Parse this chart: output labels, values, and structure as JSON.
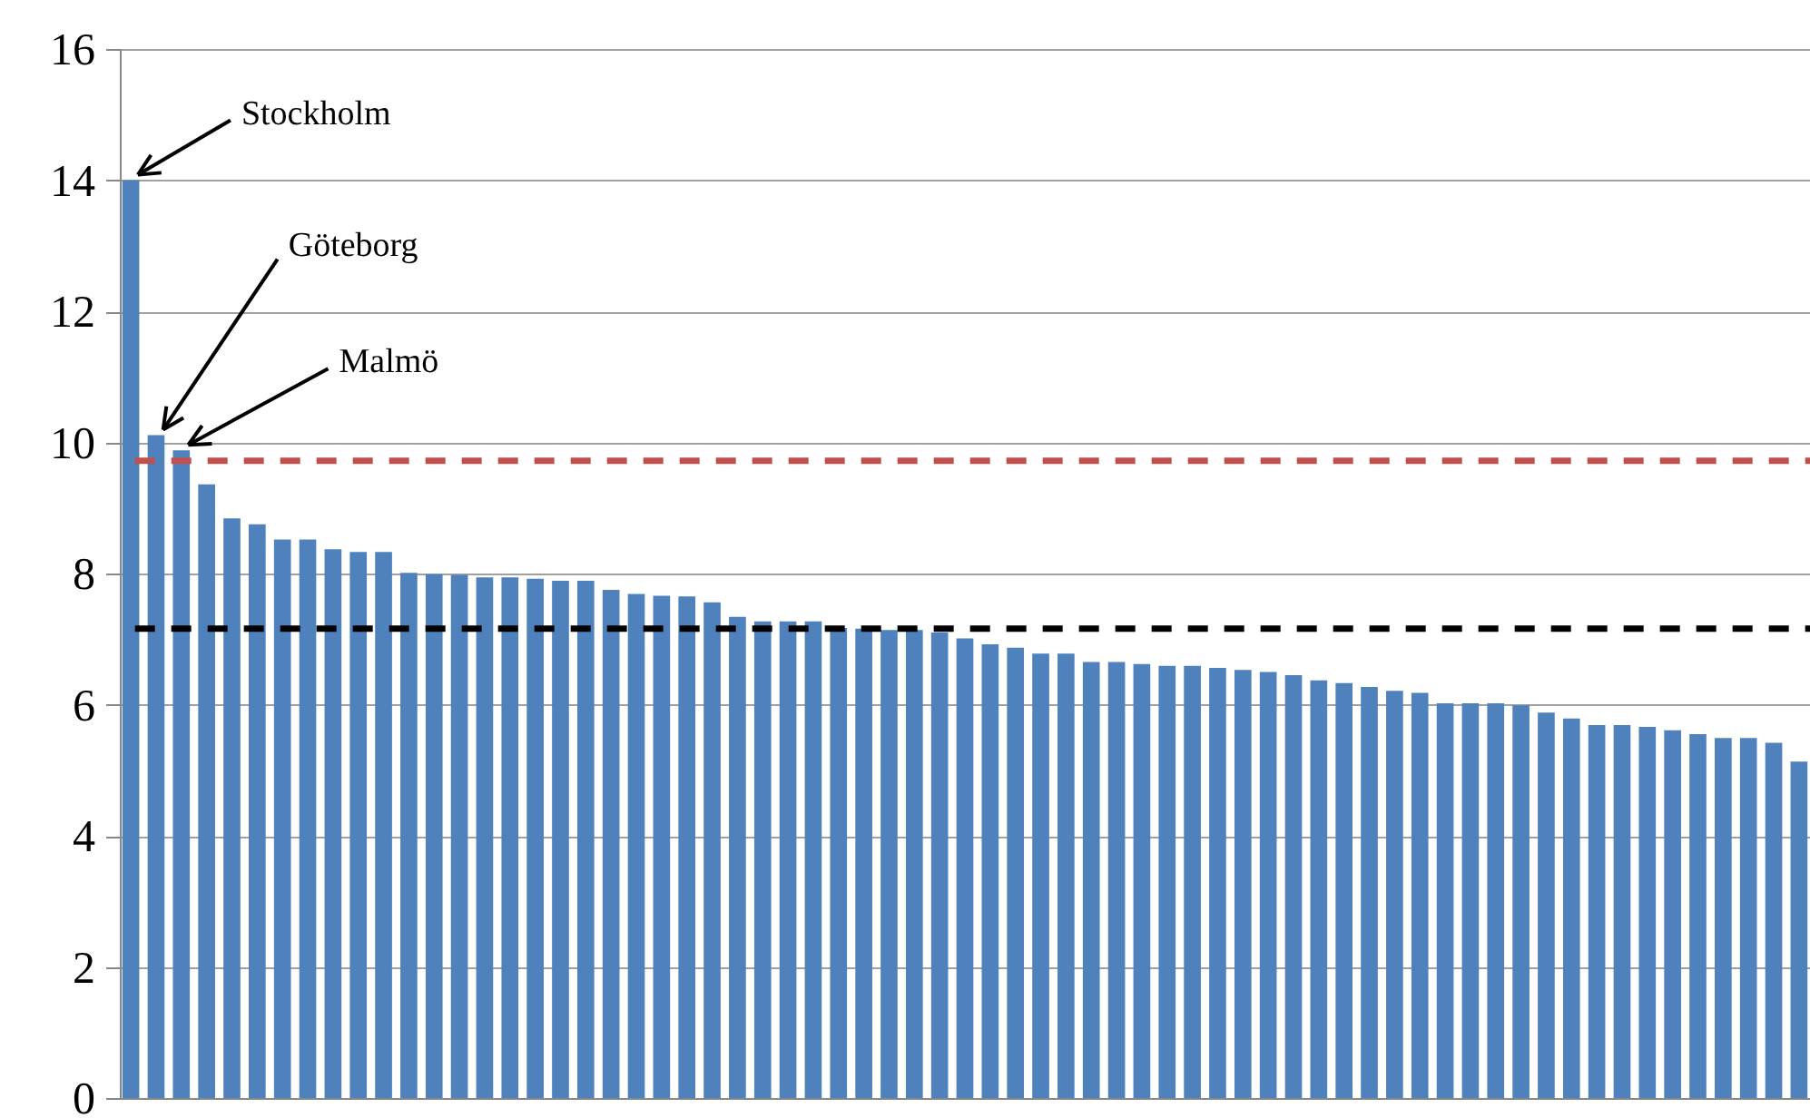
{
  "chart_data": {
    "type": "bar",
    "relative": false,
    "categories": [
      null,
      null,
      null,
      null,
      null,
      null,
      null,
      null,
      null,
      null,
      null,
      null,
      null,
      null,
      null,
      null,
      null,
      null,
      null,
      null,
      null,
      null,
      null,
      null,
      null,
      null,
      null,
      null,
      null,
      null,
      null,
      null,
      null,
      null,
      null,
      null,
      null,
      null,
      null,
      null,
      null,
      null,
      null,
      null,
      null,
      null,
      null,
      null,
      null,
      null,
      null,
      null,
      null,
      null,
      null,
      null,
      null,
      null,
      null,
      null,
      null,
      null,
      null,
      null,
      null,
      null,
      null
    ],
    "values": [
      14.0,
      10.11,
      9.88,
      9.36,
      8.84,
      8.75,
      8.52,
      8.52,
      8.37,
      8.33,
      8.33,
      8.01,
      7.99,
      7.98,
      7.94,
      7.94,
      7.92,
      7.89,
      7.89,
      7.75,
      7.69,
      7.66,
      7.65,
      7.56,
      7.34,
      7.27,
      7.27,
      7.27,
      7.17,
      7.16,
      7.14,
      7.14,
      7.1,
      7.01,
      6.92,
      6.87,
      6.78,
      6.78,
      6.65,
      6.65,
      6.62,
      6.59,
      6.59,
      6.56,
      6.53,
      6.5,
      6.45,
      6.37,
      6.33,
      6.27,
      6.21,
      6.18,
      6.02,
      6.02,
      6.02,
      5.99,
      5.88,
      5.79,
      5.69,
      5.69,
      5.66,
      5.61,
      5.55,
      5.49,
      5.49,
      5.42,
      5.13
    ],
    "color": "#4f81bd",
    "ylim": [
      0,
      16
    ],
    "yticks": [
      0,
      2,
      4,
      6,
      8,
      10,
      12,
      14,
      16
    ],
    "grid": "y",
    "tick_labels": "y",
    "ref_lines": [
      {
        "axis": "y",
        "value": 9.72,
        "color": "#c0504d",
        "line_style": "dashed"
      },
      {
        "axis": "y",
        "value": 7.16,
        "color": "#000000",
        "line_style": "dashed"
      }
    ],
    "annotations": [
      "Stockholm",
      "Göteborg",
      "Malmö"
    ]
  }
}
